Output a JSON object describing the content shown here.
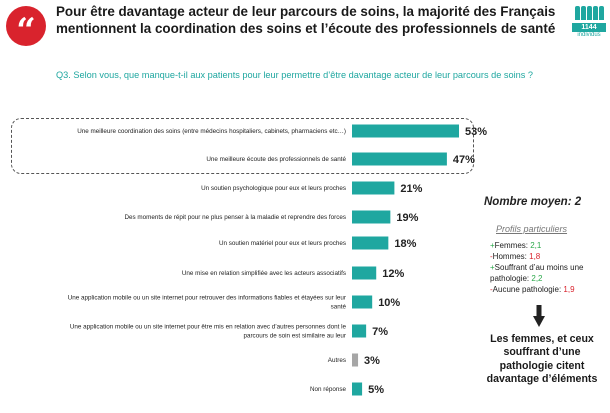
{
  "header": {
    "quote_icon": "quote-mark-icon",
    "title": "Pour être davantage acteur de leur parcours de soins, la majorité des Français mentionnent la coordination des soins et l’écoute des professionnels de santé",
    "sample_count": "1144",
    "sample_unit": "individus",
    "sample_icon": "people-icon"
  },
  "question": "Q3. Selon vous, que manque-t-il aux patients pour leur permettre d’être davantage acteur de leur parcours de soins ?",
  "colors": {
    "bar": "#1fa7a0",
    "bar_other": "#a6a6a6",
    "accent_red": "#d9232d",
    "positive": "#2aa84a"
  },
  "chart_data": {
    "type": "bar",
    "orientation": "horizontal",
    "title": "",
    "xlabel": "",
    "ylabel": "",
    "xlim": [
      0,
      60
    ],
    "categories": [
      [
        "Une meilleure coordination des soins (entre médecins hospitaliers, cabinets, pharmaciens etc…)"
      ],
      [
        "Une meilleure écoute des professionnels de santé"
      ],
      [
        "Un soutien psychologique pour eux et leurs proches"
      ],
      [
        "Des moments de répit pour ne plus penser à la maladie et reprendre des forces"
      ],
      [
        "Un soutien matériel pour eux et leurs proches"
      ],
      [
        "Une mise en relation simplifiée avec les acteurs associatifs"
      ],
      [
        "Une application mobile ou un site internet pour retrouver des informations fiables et étayées sur leur",
        "santé"
      ],
      [
        "Une application mobile ou un site internet pour être mis en relation avec d’autres personnes dont le",
        "parcours de soin est similaire au leur"
      ],
      [
        "Autres"
      ],
      [
        "Non réponse"
      ]
    ],
    "values": [
      53,
      47,
      21,
      19,
      18,
      12,
      10,
      7,
      3,
      5
    ],
    "value_labels": [
      "53%",
      "47%",
      "21%",
      "19%",
      "18%",
      "12%",
      "10%",
      "7%",
      "3%",
      "5%"
    ],
    "bar_colors": [
      "bar",
      "bar",
      "bar",
      "bar",
      "bar",
      "bar",
      "bar",
      "bar",
      "bar_other",
      "bar"
    ],
    "highlighted_items": 2
  },
  "side_panel": {
    "nombre_moyen": "Nombre moyen: 2",
    "profils_title": "Profils particuliers",
    "profils": [
      {
        "sign": "+",
        "label": "Femmes: ",
        "value": "2,1",
        "tone": "plus"
      },
      {
        "sign": "-",
        "label": "Hommes: ",
        "value": "1,8",
        "tone": "minus"
      },
      {
        "sign": "+",
        "label": "Souffrant d’au moins une pathologie: ",
        "value": "2,2",
        "tone": "plus"
      },
      {
        "sign": "-",
        "label": "Aucune pathologie: ",
        "value": "1,9",
        "tone": "minus"
      }
    ],
    "arrow_icon": "down-arrow-icon",
    "conclusion": "Les femmes, et ceux souffrant d’une pathologie citent davantage d’éléments"
  }
}
